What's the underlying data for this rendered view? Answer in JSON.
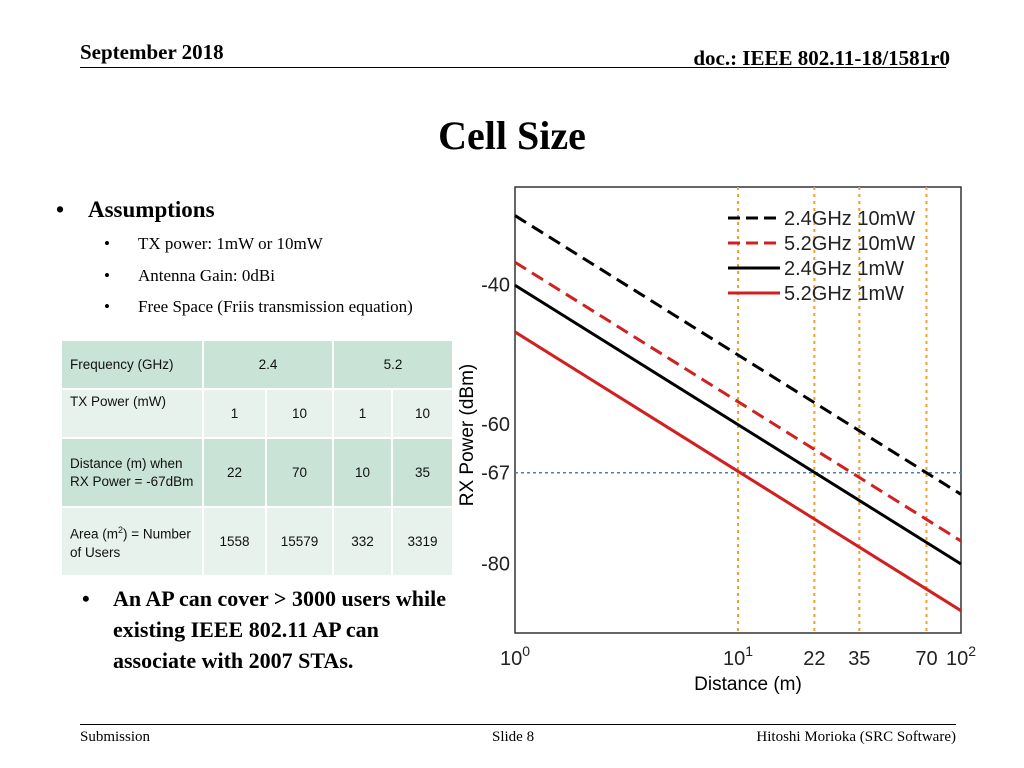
{
  "header": {
    "date": "September 2018",
    "doc": "doc.: IEEE 802.11-18/1581r0"
  },
  "title": "Cell Size",
  "assumptions": {
    "heading": "Assumptions",
    "bullet": "•",
    "items": [
      "TX power: 1mW or 10mW",
      "Antenna Gain: 0dBi",
      "Free Space (Friis transmission equation)"
    ]
  },
  "table": {
    "header": {
      "label": "Frequency (GHz)",
      "freq_a": "2.4",
      "freq_b": "5.2"
    },
    "rows": [
      {
        "label": "TX Power (mW)",
        "values": [
          "1",
          "10",
          "1",
          "10"
        ]
      },
      {
        "label": "Distance (m) when RX Power = -67dBm",
        "values": [
          "22",
          "70",
          "10",
          "35"
        ]
      },
      {
        "label_prefix": "Area (m",
        "label_sup": "2",
        "label_suffix": ") = Number of Users",
        "values": [
          "1558",
          "15579",
          "332",
          "3319"
        ]
      }
    ]
  },
  "note": "An AP can cover > 3000 users while existing IEEE 802.11 AP can associate with 2007 STAs.",
  "chart_data": {
    "type": "line",
    "xscale": "log",
    "xlim": [
      1,
      100
    ],
    "ylim": [
      -90,
      -26
    ],
    "xlabel": "Distance (m)",
    "ylabel": "RX Power (dBm)",
    "y_ticks": [
      -40,
      -60,
      -67,
      -80
    ],
    "y_tick_labels": [
      "-40",
      "-60",
      "-67",
      "-80"
    ],
    "x_ticks": [
      1,
      10,
      22,
      35,
      70,
      100
    ],
    "x_tick_labels": [
      {
        "base": "10",
        "exp": "0"
      },
      {
        "base": "10",
        "exp": "1"
      },
      {
        "base": "22",
        "exp": ""
      },
      {
        "base": "35",
        "exp": ""
      },
      {
        "base": "70",
        "exp": ""
      },
      {
        "base": "10",
        "exp": "2"
      }
    ],
    "reference_line": {
      "y": -67,
      "color": "#4a7fb0"
    },
    "marker_lines": {
      "x": [
        10,
        22,
        35,
        70
      ],
      "color": "#f0a030"
    },
    "series": [
      {
        "name": "2.4GHz 10mW",
        "color": "#000000",
        "dashed": true,
        "x": [
          1,
          100
        ],
        "y": [
          -30.1,
          -70.1
        ]
      },
      {
        "name": "5.2GHz 10mW",
        "color": "#d02020",
        "dashed": true,
        "x": [
          1,
          100
        ],
        "y": [
          -36.8,
          -76.8
        ]
      },
      {
        "name": "2.4GHz 1mW",
        "color": "#000000",
        "dashed": false,
        "x": [
          1,
          100
        ],
        "y": [
          -40.1,
          -80.1
        ]
      },
      {
        "name": "5.2GHz 1mW",
        "color": "#d02020",
        "dashed": false,
        "x": [
          1,
          100
        ],
        "y": [
          -46.8,
          -86.8
        ]
      }
    ]
  },
  "footer": {
    "left": "Submission",
    "center": "Slide 8",
    "right": "Hitoshi Morioka (SRC Software)"
  }
}
